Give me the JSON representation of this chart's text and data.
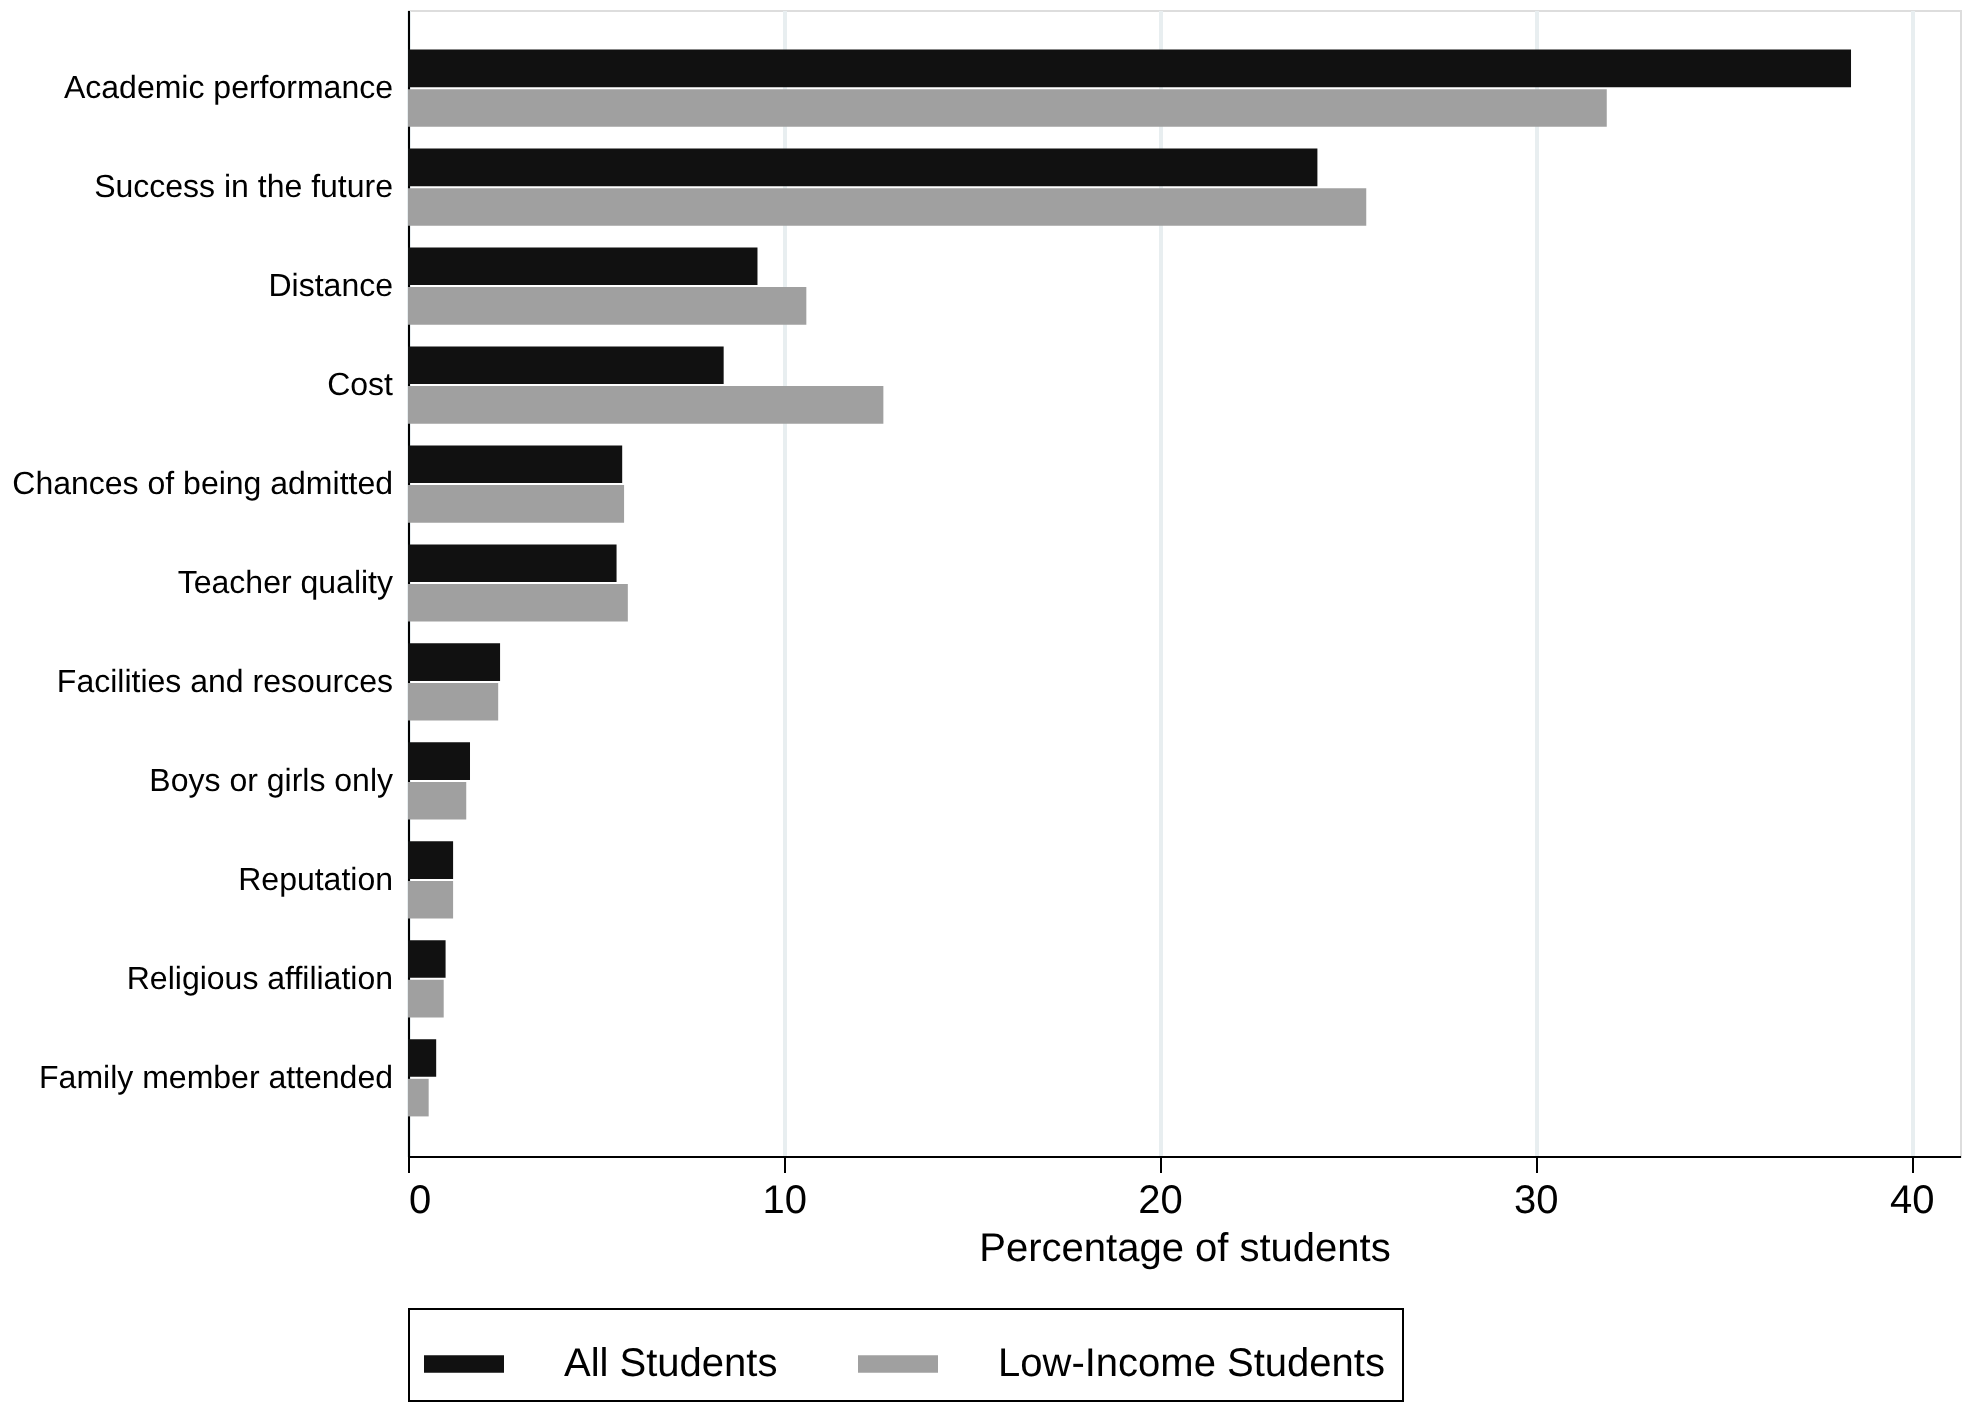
{
  "chart_data": {
    "type": "bar",
    "orientation": "horizontal",
    "xlabel": "Percentage of students",
    "categories": [
      "Academic performance",
      "Success in the future",
      "Distance",
      "Cost",
      "Chances of being admitted",
      "Teacher quality",
      "Facilities and resources",
      "Boys or girls only",
      "Reputation",
      "Religious affiliation",
      "Family member attended"
    ],
    "series": [
      {
        "name": "All Students",
        "color": "#111111",
        "values": [
          38.4,
          24.2,
          9.3,
          8.4,
          5.7,
          5.55,
          2.45,
          1.65,
          1.2,
          1.0,
          0.75
        ]
      },
      {
        "name": "Low-Income Students",
        "color": "#a0a0a0",
        "values": [
          31.9,
          25.5,
          10.6,
          12.65,
          5.75,
          5.85,
          2.4,
          1.55,
          1.2,
          0.95,
          0.55
        ]
      }
    ],
    "xlim": [
      0,
      41.3
    ],
    "xticks": [
      0,
      10,
      20,
      30,
      40
    ],
    "grid": "x",
    "legend": "bottom"
  }
}
